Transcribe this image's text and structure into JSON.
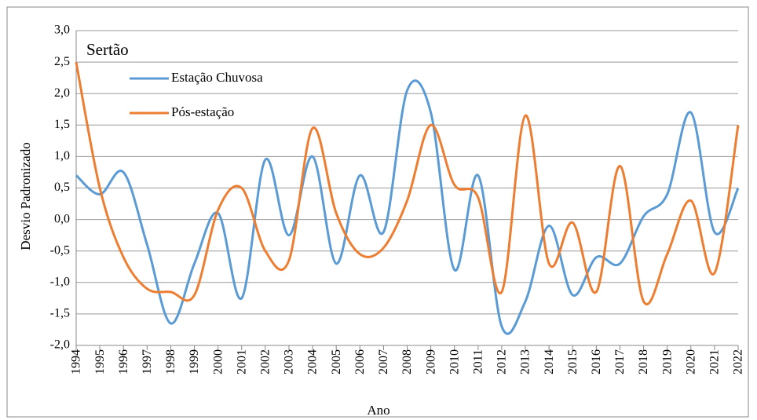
{
  "chart_data": {
    "type": "line",
    "title": "Sertão",
    "x_label": "Ano",
    "y_label": "Desvio Padronizado",
    "categories": [
      "1994",
      "1995",
      "1996",
      "1997",
      "1998",
      "1999",
      "2000",
      "2001",
      "2002",
      "2003",
      "2004",
      "2005",
      "2006",
      "2007",
      "2008",
      "2009",
      "2010",
      "2011",
      "2012",
      "2013",
      "2014",
      "2015",
      "2016",
      "2017",
      "2018",
      "2019",
      "2020",
      "2021",
      "2022"
    ],
    "series": [
      {
        "name": "Estação Chuvosa",
        "color": "#5b9bd5",
        "values": [
          0.7,
          0.4,
          0.75,
          -0.4,
          -1.65,
          -0.7,
          0.1,
          -1.25,
          0.95,
          -0.25,
          1.0,
          -0.7,
          0.7,
          -0.2,
          2.05,
          1.7,
          -0.8,
          0.7,
          -1.7,
          -1.3,
          -0.1,
          -1.2,
          -0.6,
          -0.7,
          0.05,
          0.4,
          1.7,
          -0.2,
          0.5
        ]
      },
      {
        "name": "Pós-estação",
        "color": "#ed7d31",
        "values": [
          2.5,
          0.5,
          -0.6,
          -1.1,
          -1.15,
          -1.2,
          0.15,
          0.5,
          -0.5,
          -0.65,
          1.45,
          0.1,
          -0.55,
          -0.45,
          0.3,
          1.5,
          0.55,
          0.35,
          -1.15,
          1.65,
          -0.7,
          -0.05,
          -1.15,
          0.85,
          -1.3,
          -0.55,
          0.3,
          -0.85,
          1.5
        ]
      }
    ],
    "ylim": [
      -2,
      3
    ],
    "yticks": [
      {
        "value": -2,
        "label": "-2,0"
      },
      {
        "value": -1.5,
        "label": "-1,5"
      },
      {
        "value": -1,
        "label": "-1,0"
      },
      {
        "value": -0.5,
        "label": "-0,5"
      },
      {
        "value": 0,
        "label": "0,0"
      },
      {
        "value": 0.5,
        "label": "0,5"
      },
      {
        "value": 1,
        "label": "1,0"
      },
      {
        "value": 1.5,
        "label": "1,5"
      },
      {
        "value": 2,
        "label": "2,0"
      },
      {
        "value": 2.5,
        "label": "2,5"
      },
      {
        "value": 3,
        "label": "3,0"
      }
    ],
    "grid": true,
    "smooth": true
  }
}
